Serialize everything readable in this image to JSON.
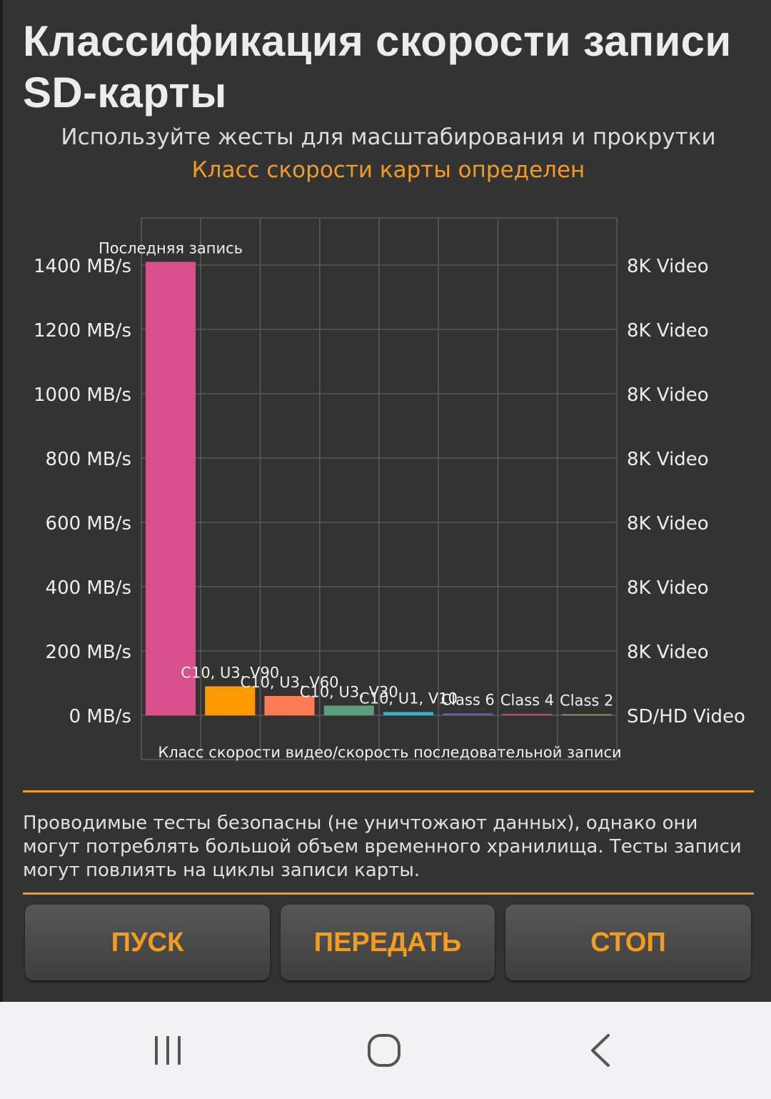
{
  "header": {
    "title": "Классификация скорости записи SD-карты",
    "subtitle": "Используйте жесты для масштабирования и прокрутки",
    "status": "Класс скорости карты определен"
  },
  "chart_data": {
    "type": "bar",
    "categories": [
      "Последняя запись",
      "C10, U3, V90",
      "C10, U3, V60",
      "C10, U3, V30",
      "C10, U1, V10",
      "Class 6",
      "Class 4",
      "Class 2"
    ],
    "values": [
      1410,
      90,
      60,
      30,
      10,
      6,
      4,
      2
    ],
    "colors": [
      "#d9508c",
      "#ff9900",
      "#ff7b55",
      "#5e9e7e",
      "#33b6c8",
      "#5a6a9a",
      "#c8507a",
      "#7aaa66"
    ],
    "ylim": [
      0,
      1550
    ],
    "y_ticks": [
      0,
      200,
      400,
      600,
      800,
      1000,
      1200,
      1400
    ],
    "y_tick_labels": [
      "0 MB/s",
      "200 MB/s",
      "400 MB/s",
      "600 MB/s",
      "800 MB/s",
      "1000 MB/s",
      "1200 MB/s",
      "1400 MB/s"
    ],
    "right_tick_labels": [
      "SD/HD Video",
      "8K Video",
      "8K Video",
      "8K Video",
      "8K Video",
      "8K Video",
      "8K Video",
      "8K Video"
    ],
    "xlabel": "Класс скорости видео/скорость последовательной записи",
    "grid": true
  },
  "info": {
    "note": "Проводимые тесты безопасны (не уничтожают данных), однако они могут потреблять большой объем временного хранилища. Тесты записи могут повлиять на циклы записи карты."
  },
  "buttons": {
    "start": "ПУСК",
    "transfer": "ПЕРЕДАТЬ",
    "stop": "СТОП"
  },
  "navbar": {
    "icons": [
      "recent-apps-icon",
      "home-icon",
      "back-icon"
    ]
  },
  "colors": {
    "accent": "#f39c1e",
    "background": "#333333"
  }
}
